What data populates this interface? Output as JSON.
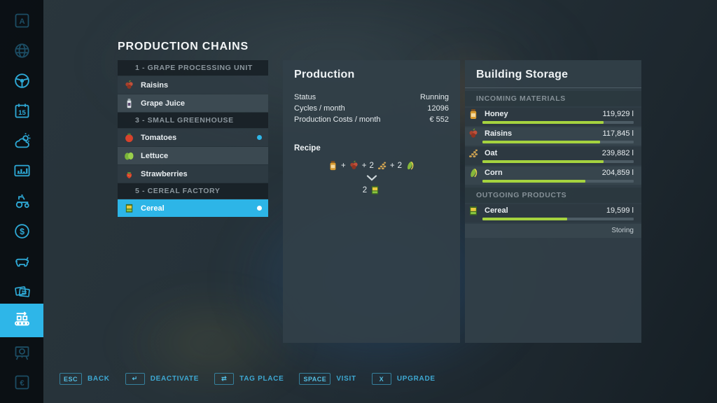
{
  "app": {
    "title": "PRODUCTION CHAINS"
  },
  "colors": {
    "accent": "#2eb6e8",
    "bar_fill": "#a5d33f",
    "active_dot": "#2eb6e8",
    "selected_dot": "#ffffff",
    "hotbar_text": "#3ea8d2"
  },
  "sidebar": {
    "items": [
      {
        "icon": "a-key",
        "glyph_text": "A",
        "state": "dim"
      },
      {
        "icon": "globe",
        "glyph_text": "",
        "state": "dim"
      },
      {
        "icon": "steering-wheel",
        "glyph_text": "",
        "state": "normal"
      },
      {
        "icon": "calendar",
        "glyph_text": "15",
        "state": "normal"
      },
      {
        "icon": "weather",
        "glyph_text": "",
        "state": "normal"
      },
      {
        "icon": "statistics",
        "glyph_text": "",
        "state": "normal"
      },
      {
        "icon": "tractor",
        "glyph_text": "",
        "state": "normal"
      },
      {
        "icon": "finances",
        "glyph_text": "$",
        "state": "normal"
      },
      {
        "icon": "animals",
        "glyph_text": "",
        "state": "normal"
      },
      {
        "icon": "contracts",
        "glyph_text": "",
        "state": "normal"
      },
      {
        "icon": "production-chains",
        "glyph_text": "",
        "state": "selected"
      },
      {
        "icon": "prices-board",
        "glyph_text": "",
        "state": "dim"
      },
      {
        "icon": "e-key",
        "glyph_text": "€",
        "state": "dim"
      }
    ]
  },
  "chain_list": {
    "sections": [
      {
        "header": "1 - GRAPE PROCESSING UNIT",
        "items": [
          {
            "label": "Raisins",
            "icon": "raisins",
            "dot": "none",
            "selected": false
          },
          {
            "label": "Grape Juice",
            "icon": "grape-juice",
            "dot": "none",
            "selected": false
          }
        ]
      },
      {
        "header": "3 - SMALL GREENHOUSE",
        "items": [
          {
            "label": "Tomatoes",
            "icon": "tomatoes",
            "dot": "active",
            "selected": false
          },
          {
            "label": "Lettuce",
            "icon": "lettuce",
            "dot": "none",
            "selected": false
          },
          {
            "label": "Strawberries",
            "icon": "strawberries",
            "dot": "none",
            "selected": false
          }
        ]
      },
      {
        "header": "5 - CEREAL FACTORY",
        "items": [
          {
            "label": "Cereal",
            "icon": "cereal",
            "dot": "selected",
            "selected": true
          }
        ]
      }
    ]
  },
  "production": {
    "title": "Production",
    "rows": [
      {
        "label": "Status",
        "value": "Running"
      },
      {
        "label": "Cycles / month",
        "value": "12096"
      },
      {
        "label": "Production Costs / month",
        "value": "€ 552"
      }
    ],
    "recipe": {
      "heading": "Recipe",
      "separator": "+",
      "inputs": [
        {
          "qty": "",
          "icon": "honey"
        },
        {
          "qty": "",
          "icon": "raisins"
        },
        {
          "qty": "2",
          "icon": "oat"
        },
        {
          "qty": "2",
          "icon": "corn"
        }
      ],
      "output": {
        "qty": "2",
        "icon": "cereal"
      }
    }
  },
  "storage": {
    "title": "Building Storage",
    "incoming_header": "INCOMING MATERIALS",
    "outgoing_header": "OUTGOING PRODUCTS",
    "incoming": [
      {
        "label": "Honey",
        "icon": "honey",
        "amount": "119,929 l",
        "fill_pct": 80
      },
      {
        "label": "Raisins",
        "icon": "raisins",
        "amount": "117,845 l",
        "fill_pct": 78
      },
      {
        "label": "Oat",
        "icon": "oat",
        "amount": "239,882 l",
        "fill_pct": 80
      },
      {
        "label": "Corn",
        "icon": "corn",
        "amount": "204,859 l",
        "fill_pct": 68
      }
    ],
    "outgoing": [
      {
        "label": "Cereal",
        "icon": "cereal",
        "amount": "19,599 l",
        "fill_pct": 56,
        "status": "Storing"
      }
    ]
  },
  "hotbar": {
    "buttons": [
      {
        "key": "ESC",
        "label": "BACK"
      },
      {
        "key": "↵",
        "label": "DEACTIVATE"
      },
      {
        "key": "⇄",
        "label": "TAG PLACE"
      },
      {
        "key": "SPACE",
        "label": "VISIT"
      },
      {
        "key": "X",
        "label": "UPGRADE"
      }
    ]
  }
}
